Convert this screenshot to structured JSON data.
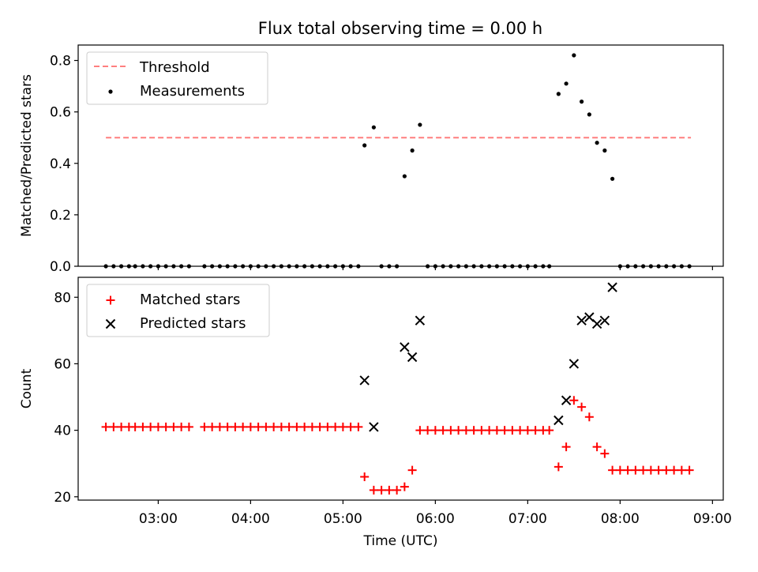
{
  "title": "Flux total observing time = 0.00 h",
  "chart_data": [
    {
      "type": "scatter",
      "ylabel": "Matched/Predicted stars",
      "xlabel": "",
      "ylim": [
        0,
        0.86
      ],
      "yticks": [
        0.0,
        0.2,
        0.4,
        0.6,
        0.8
      ],
      "ytick_labels": [
        "0.0",
        "0.2",
        "0.4",
        "0.6",
        "0.8"
      ],
      "xticks": [
        "03:00",
        "04:00",
        "05:00",
        "06:00",
        "07:00",
        "08:00",
        "09:00"
      ],
      "legend_position": "top-left",
      "threshold": {
        "name": "Threshold",
        "value": 0.5,
        "x_start": "02:26",
        "x_end": "08:46",
        "color": "#ff7f7f",
        "style": "dashed"
      },
      "series": [
        {
          "name": "Measurements",
          "marker": "dot",
          "color": "#000000",
          "x": [
            "02:26",
            "02:31",
            "02:36",
            "02:41",
            "02:45",
            "02:50",
            "02:55",
            "03:00",
            "03:05",
            "03:10",
            "03:15",
            "03:20",
            "03:30",
            "03:35",
            "03:40",
            "03:45",
            "03:50",
            "03:55",
            "04:00",
            "04:05",
            "04:10",
            "04:15",
            "04:20",
            "04:25",
            "04:30",
            "04:35",
            "04:40",
            "04:45",
            "04:50",
            "04:55",
            "05:00",
            "05:05",
            "05:10",
            "05:14",
            "05:20",
            "05:25",
            "05:30",
            "05:35",
            "05:40",
            "05:45",
            "05:50",
            "05:55",
            "06:00",
            "06:05",
            "06:10",
            "06:15",
            "06:20",
            "06:25",
            "06:30",
            "06:35",
            "06:40",
            "06:45",
            "06:50",
            "06:55",
            "07:00",
            "07:05",
            "07:10",
            "07:14",
            "07:20",
            "07:25",
            "07:30",
            "07:35",
            "07:40",
            "07:45",
            "07:50",
            "07:55",
            "08:00",
            "08:05",
            "08:10",
            "08:15",
            "08:20",
            "08:25",
            "08:30",
            "08:35",
            "08:40",
            "08:45"
          ],
          "y": [
            0,
            0,
            0,
            0,
            0,
            0,
            0,
            0,
            0,
            0,
            0,
            0,
            0,
            0,
            0,
            0,
            0,
            0,
            0,
            0,
            0,
            0,
            0,
            0,
            0,
            0,
            0,
            0,
            0,
            0,
            0,
            0,
            0,
            0.47,
            0.54,
            0,
            0,
            0,
            0.35,
            0.45,
            0.55,
            0,
            0,
            0,
            0,
            0,
            0,
            0,
            0,
            0,
            0,
            0,
            0,
            0,
            0,
            0,
            0,
            0,
            0.67,
            0.71,
            0.82,
            0.64,
            0.59,
            0.48,
            0.45,
            0.34,
            0,
            0,
            0,
            0,
            0,
            0,
            0,
            0,
            0,
            0
          ]
        }
      ]
    },
    {
      "type": "scatter",
      "ylabel": "Count",
      "xlabel": "Time (UTC)",
      "ylim": [
        19,
        86
      ],
      "yticks": [
        20,
        40,
        60,
        80
      ],
      "ytick_labels": [
        "20",
        "40",
        "60",
        "80"
      ],
      "xticks": [
        "03:00",
        "04:00",
        "05:00",
        "06:00",
        "07:00",
        "08:00",
        "09:00"
      ],
      "legend_position": "top-left",
      "series": [
        {
          "name": "Matched stars",
          "marker": "plus",
          "color": "#ff0000",
          "x": [
            "02:26",
            "02:31",
            "02:36",
            "02:41",
            "02:45",
            "02:50",
            "02:55",
            "03:00",
            "03:05",
            "03:10",
            "03:15",
            "03:20",
            "03:30",
            "03:35",
            "03:40",
            "03:45",
            "03:50",
            "03:55",
            "04:00",
            "04:05",
            "04:10",
            "04:15",
            "04:20",
            "04:25",
            "04:30",
            "04:35",
            "04:40",
            "04:45",
            "04:50",
            "04:55",
            "05:00",
            "05:05",
            "05:10",
            "05:14",
            "05:20",
            "05:25",
            "05:30",
            "05:35",
            "05:40",
            "05:45",
            "05:50",
            "05:55",
            "06:00",
            "06:05",
            "06:10",
            "06:15",
            "06:20",
            "06:25",
            "06:30",
            "06:35",
            "06:40",
            "06:45",
            "06:50",
            "06:55",
            "07:00",
            "07:05",
            "07:10",
            "07:14",
            "07:20",
            "07:25",
            "07:30",
            "07:35",
            "07:40",
            "07:45",
            "07:50",
            "07:55",
            "08:00",
            "08:05",
            "08:10",
            "08:15",
            "08:20",
            "08:25",
            "08:30",
            "08:35",
            "08:40",
            "08:45"
          ],
          "y": [
            41,
            41,
            41,
            41,
            41,
            41,
            41,
            41,
            41,
            41,
            41,
            41,
            41,
            41,
            41,
            41,
            41,
            41,
            41,
            41,
            41,
            41,
            41,
            41,
            41,
            41,
            41,
            41,
            41,
            41,
            41,
            41,
            41,
            26,
            22,
            22,
            22,
            22,
            23,
            28,
            40,
            40,
            40,
            40,
            40,
            40,
            40,
            40,
            40,
            40,
            40,
            40,
            40,
            40,
            40,
            40,
            40,
            40,
            29,
            35,
            49,
            47,
            44,
            35,
            33,
            28,
            28,
            28,
            28,
            28,
            28,
            28,
            28,
            28,
            28,
            28
          ]
        },
        {
          "name": "Predicted stars",
          "marker": "x",
          "color": "#000000",
          "x": [
            "05:14",
            "05:20",
            "05:40",
            "05:45",
            "05:50",
            "07:20",
            "07:25",
            "07:30",
            "07:35",
            "07:40",
            "07:45",
            "07:50",
            "07:55"
          ],
          "y": [
            55,
            41,
            65,
            62,
            73,
            43,
            49,
            60,
            73,
            74,
            72,
            73,
            83
          ]
        }
      ]
    }
  ]
}
